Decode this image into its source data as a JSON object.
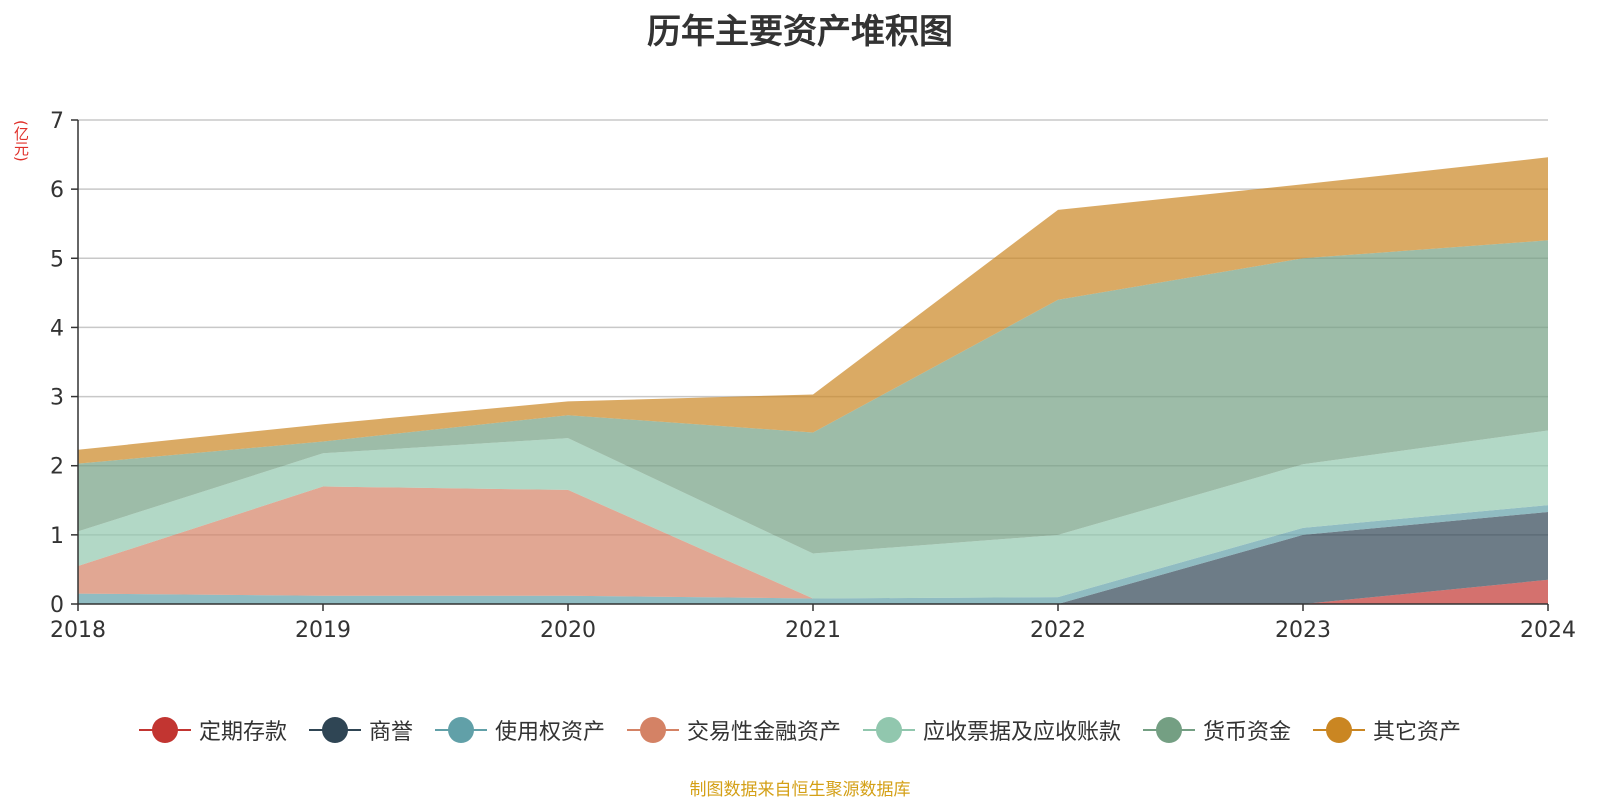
{
  "chart_data": {
    "type": "area",
    "stacked": true,
    "title": "历年主要资产堆积图",
    "ylabel": "(亿元)",
    "xlabel": "",
    "x": [
      "2018",
      "2019",
      "2020",
      "2021",
      "2022",
      "2023",
      "2024"
    ],
    "ylim": [
      0,
      7
    ],
    "yticks": [
      0,
      1,
      2,
      3,
      4,
      5,
      6,
      7
    ],
    "grid": true,
    "legend_position": "bottom",
    "series": [
      {
        "name": "定期存款",
        "color": "#c23531",
        "values": [
          0,
          0,
          0,
          0,
          0,
          0,
          0.35
        ]
      },
      {
        "name": "商誉",
        "color": "#2f4554",
        "values": [
          0,
          0,
          0,
          0,
          0,
          1.0,
          0.98
        ]
      },
      {
        "name": "使用权资产",
        "color": "#61a0a8",
        "values": [
          0.15,
          0.12,
          0.12,
          0.08,
          0.1,
          0.1,
          0.1
        ]
      },
      {
        "name": "交易性金融资产",
        "color": "#d48265",
        "values": [
          0.4,
          1.58,
          1.53,
          0,
          0,
          0,
          0
        ]
      },
      {
        "name": "应收票据及应收账款",
        "color": "#91c7ae",
        "values": [
          0.5,
          0.48,
          0.75,
          0.65,
          0.9,
          0.92,
          1.08
        ]
      },
      {
        "name": "货币资金",
        "color": "#749f83",
        "values": [
          0.98,
          0.17,
          0.33,
          1.75,
          3.4,
          2.98,
          2.75
        ]
      },
      {
        "name": "其它资产",
        "color": "#ca8622",
        "values": [
          0.2,
          0.25,
          0.2,
          0.55,
          1.3,
          1.07,
          1.2
        ]
      }
    ]
  },
  "footer": {
    "source": "制图数据来自恒生聚源数据库"
  }
}
